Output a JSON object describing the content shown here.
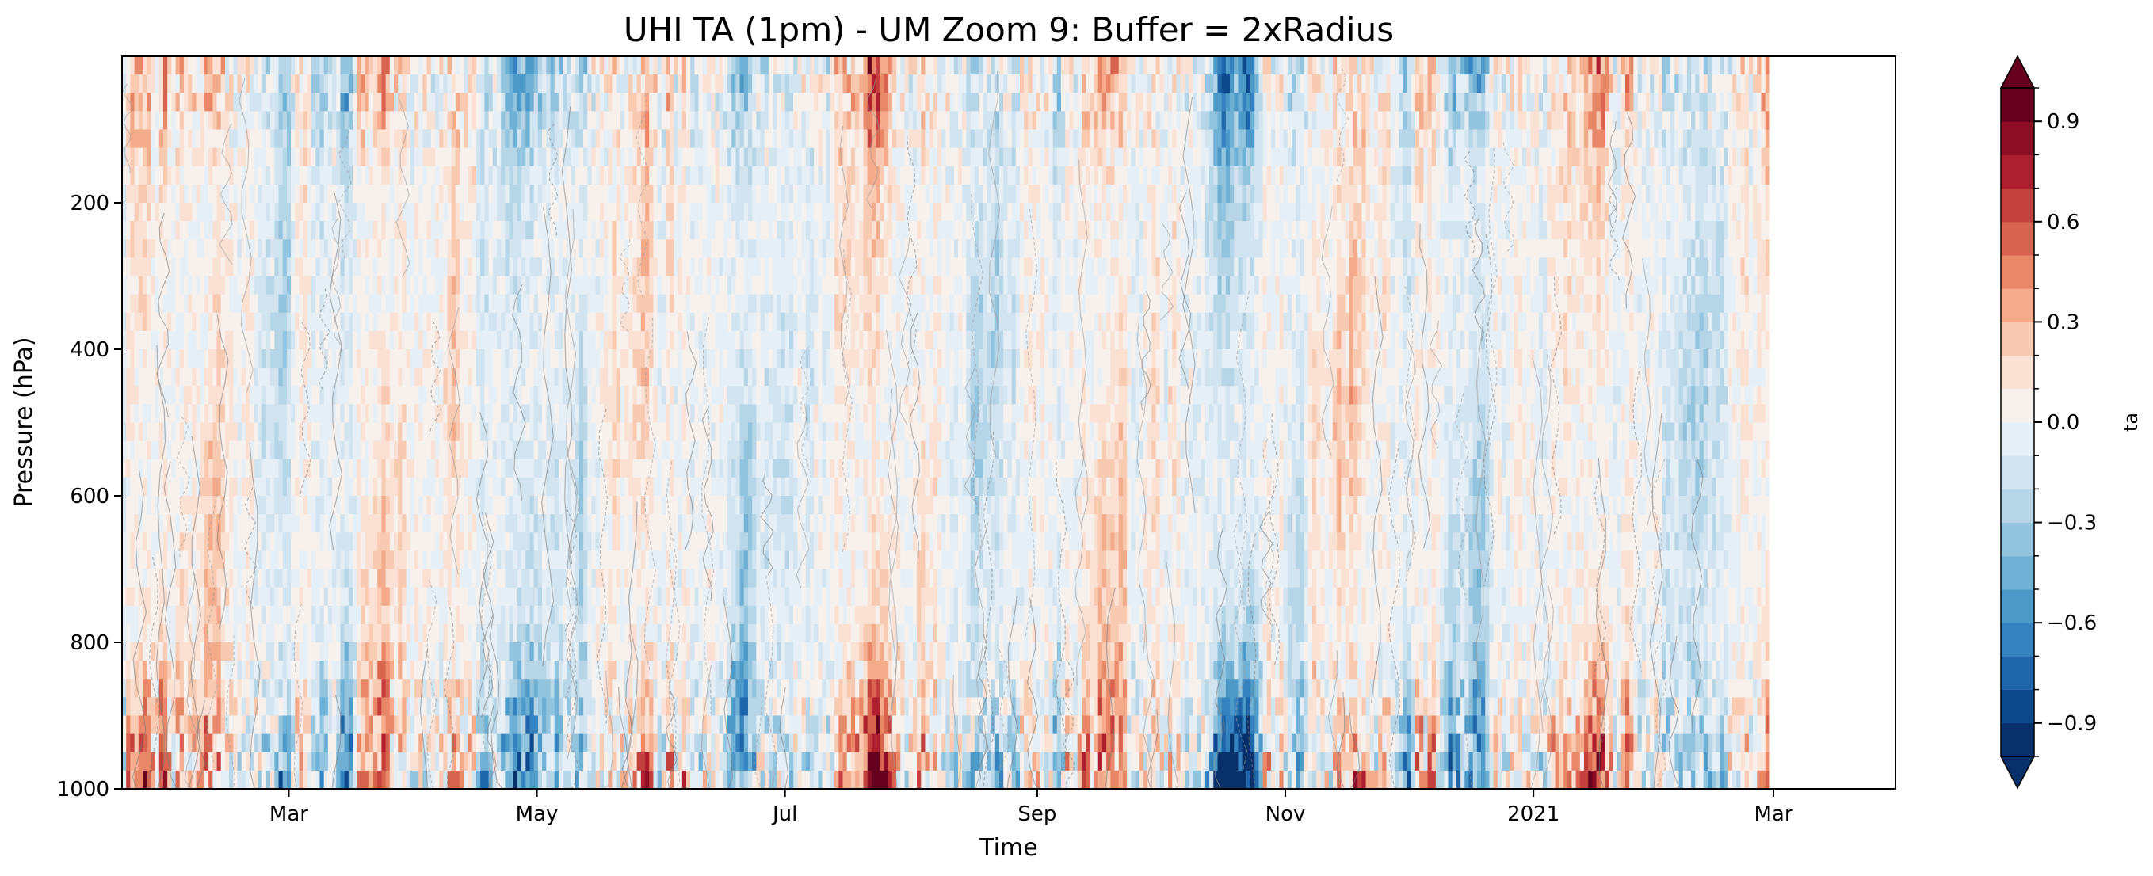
{
  "chart_data": {
    "type": "heatmap",
    "title": "UHI TA (1pm) - UM Zoom 9: Buffer = 2xRadius",
    "xlabel": "Time",
    "ylabel": "Pressure (hPa)",
    "x_ticks": [
      "Mar",
      "May",
      "Jul",
      "Sep",
      "Nov",
      "2021",
      "Mar"
    ],
    "x_range": [
      "2020-01-20",
      "2021-03-31"
    ],
    "data_x_range": [
      "2020-01-20",
      "2021-02-28"
    ],
    "y_ticks": [
      200,
      400,
      600,
      800,
      1000
    ],
    "y_range": [
      1000,
      0
    ],
    "y_inverted": true,
    "colorbar": {
      "label": "ta",
      "levels": [
        -1.0,
        -0.9,
        -0.8,
        -0.7,
        -0.6,
        -0.5,
        -0.4,
        -0.3,
        -0.2,
        -0.1,
        0.0,
        0.1,
        0.2,
        0.3,
        0.4,
        0.5,
        0.6,
        0.7,
        0.8,
        0.9,
        1.0
      ],
      "colors": [
        "#08306b",
        "#0d4a8c",
        "#1f65aa",
        "#3582be",
        "#4d9ac8",
        "#6fb0d5",
        "#93c4de",
        "#b6d6e8",
        "#d1e4ef",
        "#e6eff5",
        "#f7f1ee",
        "#fbe1d4",
        "#f8cab1",
        "#f3ab8b",
        "#e98868",
        "#d8644f",
        "#c4403d",
        "#ad1f2e",
        "#8d0d25",
        "#67001f"
      ],
      "under_color": "#08306b",
      "over_color": "#67001f",
      "ticks": [
        "−0.9",
        "−0.6",
        "−0.3",
        "0.0",
        "0.3",
        "0.6",
        "0.9"
      ],
      "extend": "both"
    },
    "field_description_values": {
      "general_range": [
        -0.3,
        0.3
      ],
      "extremes_near_surface": [
        -1.0,
        1.0
      ],
      "contour_lines": true
    }
  }
}
